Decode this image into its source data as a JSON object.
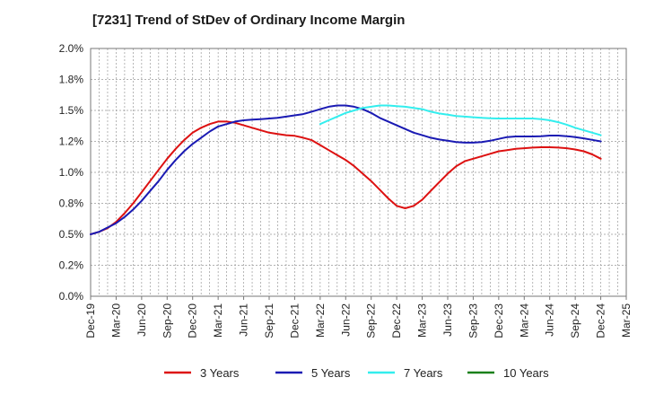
{
  "chart_data": {
    "type": "line",
    "title": "[7231]  Trend of StDev of Ordinary Income Margin",
    "xlabel": "",
    "ylabel": "",
    "x_ticks": [
      "Dec-19",
      "Mar-20",
      "Jun-20",
      "Sep-20",
      "Dec-20",
      "Mar-21",
      "Jun-21",
      "Sep-21",
      "Dec-21",
      "Mar-22",
      "Jun-22",
      "Sep-22",
      "Dec-22",
      "Mar-23",
      "Jun-23",
      "Sep-23",
      "Dec-23",
      "Mar-24",
      "Jun-24",
      "Sep-24",
      "Dec-24",
      "Mar-25"
    ],
    "y_ticks": [
      "0.0%",
      "0.2%",
      "0.5%",
      "0.8%",
      "1.0%",
      "1.2%",
      "1.5%",
      "1.8%",
      "2.0%"
    ],
    "ylim": [
      0,
      2.0
    ],
    "grid": true,
    "legend_position": "bottom",
    "series": [
      {
        "name": "3 Years",
        "color": "#dd1111",
        "points": [
          [
            "Dec-19",
            0.5
          ],
          [
            "Jan-20",
            0.52
          ],
          [
            "Feb-20",
            0.55
          ],
          [
            "Mar-20",
            0.6
          ],
          [
            "Apr-20",
            0.67
          ],
          [
            "May-20",
            0.75
          ],
          [
            "Jun-20",
            0.84
          ],
          [
            "Jul-20",
            0.93
          ],
          [
            "Aug-20",
            1.02
          ],
          [
            "Sep-20",
            1.11
          ],
          [
            "Oct-20",
            1.19
          ],
          [
            "Nov-20",
            1.26
          ],
          [
            "Dec-20",
            1.32
          ],
          [
            "Jan-21",
            1.36
          ],
          [
            "Feb-21",
            1.39
          ],
          [
            "Mar-21",
            1.41
          ],
          [
            "Apr-21",
            1.41
          ],
          [
            "May-21",
            1.4
          ],
          [
            "Jun-21",
            1.38
          ],
          [
            "Jul-21",
            1.36
          ],
          [
            "Aug-21",
            1.34
          ],
          [
            "Sep-21",
            1.32
          ],
          [
            "Oct-21",
            1.31
          ],
          [
            "Nov-21",
            1.3
          ],
          [
            "Dec-21",
            1.295
          ],
          [
            "Jan-22",
            1.28
          ],
          [
            "Feb-22",
            1.26
          ],
          [
            "Mar-22",
            1.22
          ],
          [
            "Apr-22",
            1.18
          ],
          [
            "May-22",
            1.14
          ],
          [
            "Jun-22",
            1.1
          ],
          [
            "Jul-22",
            1.05
          ],
          [
            "Aug-22",
            0.99
          ],
          [
            "Sep-22",
            0.93
          ],
          [
            "Oct-22",
            0.86
          ],
          [
            "Nov-22",
            0.79
          ],
          [
            "Dec-22",
            0.73
          ],
          [
            "Jan-23",
            0.71
          ],
          [
            "Feb-23",
            0.73
          ],
          [
            "Mar-23",
            0.78
          ],
          [
            "Apr-23",
            0.85
          ],
          [
            "May-23",
            0.92
          ],
          [
            "Jun-23",
            0.99
          ],
          [
            "Jul-23",
            1.05
          ],
          [
            "Aug-23",
            1.09
          ],
          [
            "Sep-23",
            1.11
          ],
          [
            "Oct-23",
            1.13
          ],
          [
            "Nov-23",
            1.15
          ],
          [
            "Dec-23",
            1.17
          ],
          [
            "Jan-24",
            1.18
          ],
          [
            "Feb-24",
            1.19
          ],
          [
            "Mar-24",
            1.195
          ],
          [
            "Apr-24",
            1.2
          ],
          [
            "May-24",
            1.203
          ],
          [
            "Jun-24",
            1.203
          ],
          [
            "Jul-24",
            1.2
          ],
          [
            "Aug-24",
            1.195
          ],
          [
            "Sep-24",
            1.185
          ],
          [
            "Oct-24",
            1.17
          ],
          [
            "Nov-24",
            1.145
          ],
          [
            "Dec-24",
            1.11
          ]
        ]
      },
      {
        "name": "5 Years",
        "color": "#1a1ab3",
        "points": [
          [
            "Dec-19",
            0.5
          ],
          [
            "Jan-20",
            0.52
          ],
          [
            "Feb-20",
            0.555
          ],
          [
            "Mar-20",
            0.59
          ],
          [
            "Apr-20",
            0.64
          ],
          [
            "May-20",
            0.7
          ],
          [
            "Jun-20",
            0.77
          ],
          [
            "Jul-20",
            0.85
          ],
          [
            "Aug-20",
            0.93
          ],
          [
            "Sep-20",
            1.02
          ],
          [
            "Oct-20",
            1.1
          ],
          [
            "Nov-20",
            1.17
          ],
          [
            "Dec-20",
            1.23
          ],
          [
            "Jan-21",
            1.28
          ],
          [
            "Feb-21",
            1.33
          ],
          [
            "Mar-21",
            1.37
          ],
          [
            "Apr-21",
            1.39
          ],
          [
            "May-21",
            1.41
          ],
          [
            "Jun-21",
            1.42
          ],
          [
            "Jul-21",
            1.425
          ],
          [
            "Aug-21",
            1.43
          ],
          [
            "Sep-21",
            1.435
          ],
          [
            "Oct-21",
            1.44
          ],
          [
            "Nov-21",
            1.45
          ],
          [
            "Dec-21",
            1.46
          ],
          [
            "Jan-22",
            1.47
          ],
          [
            "Feb-22",
            1.49
          ],
          [
            "Mar-22",
            1.51
          ],
          [
            "Apr-22",
            1.53
          ],
          [
            "May-22",
            1.54
          ],
          [
            "Jun-22",
            1.54
          ],
          [
            "Jul-22",
            1.53
          ],
          [
            "Aug-22",
            1.51
          ],
          [
            "Sep-22",
            1.48
          ],
          [
            "Oct-22",
            1.44
          ],
          [
            "Nov-22",
            1.41
          ],
          [
            "Dec-22",
            1.38
          ],
          [
            "Jan-23",
            1.35
          ],
          [
            "Feb-23",
            1.32
          ],
          [
            "Mar-23",
            1.3
          ],
          [
            "Apr-23",
            1.28
          ],
          [
            "May-23",
            1.265
          ],
          [
            "Jun-23",
            1.255
          ],
          [
            "Jul-23",
            1.245
          ],
          [
            "Aug-23",
            1.24
          ],
          [
            "Sep-23",
            1.24
          ],
          [
            "Oct-23",
            1.245
          ],
          [
            "Nov-23",
            1.255
          ],
          [
            "Dec-23",
            1.27
          ],
          [
            "Jan-24",
            1.285
          ],
          [
            "Feb-24",
            1.29
          ],
          [
            "Mar-24",
            1.29
          ],
          [
            "Apr-24",
            1.29
          ],
          [
            "May-24",
            1.292
          ],
          [
            "Jun-24",
            1.297
          ],
          [
            "Jul-24",
            1.297
          ],
          [
            "Aug-24",
            1.292
          ],
          [
            "Sep-24",
            1.285
          ],
          [
            "Oct-24",
            1.275
          ],
          [
            "Nov-24",
            1.262
          ],
          [
            "Dec-24",
            1.25
          ]
        ]
      },
      {
        "name": "7 Years",
        "color": "#33eeee",
        "points": [
          [
            "Mar-22",
            1.39
          ],
          [
            "Apr-22",
            1.42
          ],
          [
            "May-22",
            1.45
          ],
          [
            "Jun-22",
            1.48
          ],
          [
            "Jul-22",
            1.5
          ],
          [
            "Aug-22",
            1.52
          ],
          [
            "Sep-22",
            1.53
          ],
          [
            "Oct-22",
            1.54
          ],
          [
            "Nov-22",
            1.54
          ],
          [
            "Dec-22",
            1.535
          ],
          [
            "Jan-23",
            1.53
          ],
          [
            "Feb-23",
            1.52
          ],
          [
            "Mar-23",
            1.51
          ],
          [
            "Apr-23",
            1.49
          ],
          [
            "May-23",
            1.475
          ],
          [
            "Jun-23",
            1.465
          ],
          [
            "Jul-23",
            1.455
          ],
          [
            "Aug-23",
            1.45
          ],
          [
            "Sep-23",
            1.445
          ],
          [
            "Oct-23",
            1.44
          ],
          [
            "Nov-23",
            1.437
          ],
          [
            "Dec-23",
            1.435
          ],
          [
            "Jan-24",
            1.435
          ],
          [
            "Feb-24",
            1.435
          ],
          [
            "Mar-24",
            1.435
          ],
          [
            "Apr-24",
            1.435
          ],
          [
            "May-24",
            1.43
          ],
          [
            "Jun-24",
            1.42
          ],
          [
            "Jul-24",
            1.405
          ],
          [
            "Aug-24",
            1.385
          ],
          [
            "Sep-24",
            1.36
          ],
          [
            "Oct-24",
            1.34
          ],
          [
            "Nov-24",
            1.32
          ],
          [
            "Dec-24",
            1.3
          ]
        ]
      },
      {
        "name": "10 Years",
        "color": "#1a801a",
        "points": []
      }
    ]
  }
}
